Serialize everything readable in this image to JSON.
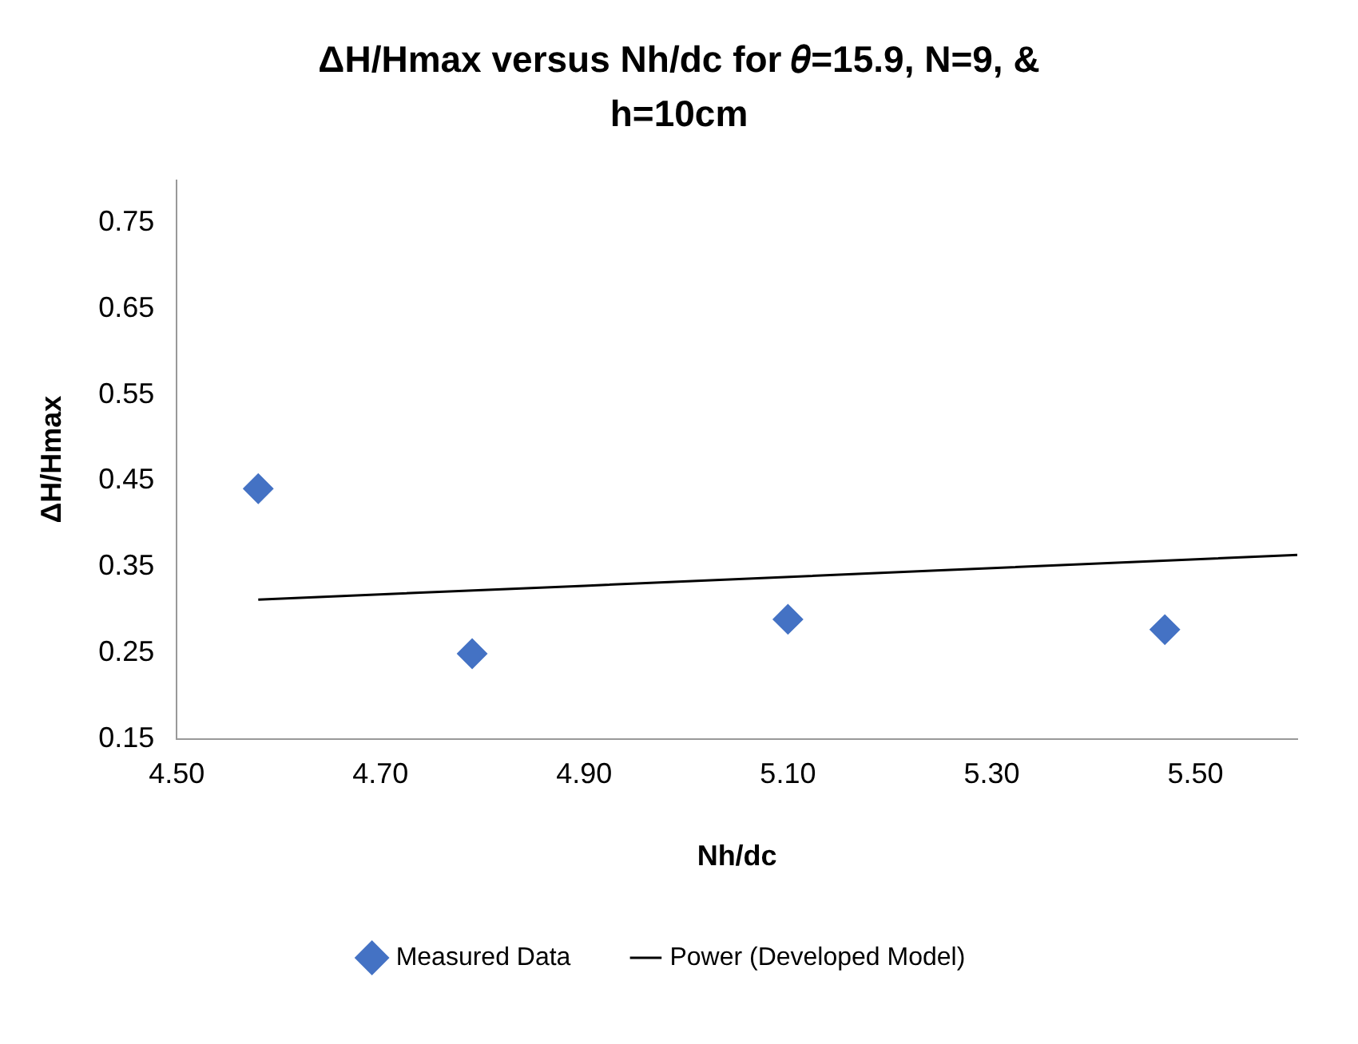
{
  "chart_data": {
    "type": "scatter",
    "title": "ΔH/Hmax versus Nh/dc for 𝜃=15.9, N=9, & h=10cm",
    "xlabel": "Nh/dc",
    "ylabel": "ΔH/Hmax",
    "xlim": [
      4.5,
      5.6
    ],
    "xticks": [
      {
        "value": 4.5,
        "label": "4.50"
      },
      {
        "value": 4.7,
        "label": "4.70"
      },
      {
        "value": 4.9,
        "label": "4.90"
      },
      {
        "value": 5.1,
        "label": "5.10"
      },
      {
        "value": 5.3,
        "label": "5.30"
      },
      {
        "value": 5.5,
        "label": "5.50"
      }
    ],
    "ylim": [
      0.15,
      0.8
    ],
    "yticks": [
      0.15,
      0.25,
      0.35,
      0.45,
      0.55,
      0.65,
      0.75
    ],
    "grid": false,
    "legend": "bottom",
    "marker": "diamond",
    "series": [
      {
        "name": "Measured Data",
        "color": "#4472c4",
        "x": [
          4.58,
          4.79,
          5.1,
          5.47
        ],
        "values": [
          0.441,
          0.249,
          0.289,
          0.277
        ]
      },
      {
        "name": "Power (Developed Model)",
        "type": "line",
        "color": "#000000",
        "marker": "none",
        "x": [
          4.58,
          4.9,
          5.25,
          5.6
        ],
        "values": [
          0.312,
          0.328,
          0.346,
          0.364
        ]
      }
    ]
  }
}
